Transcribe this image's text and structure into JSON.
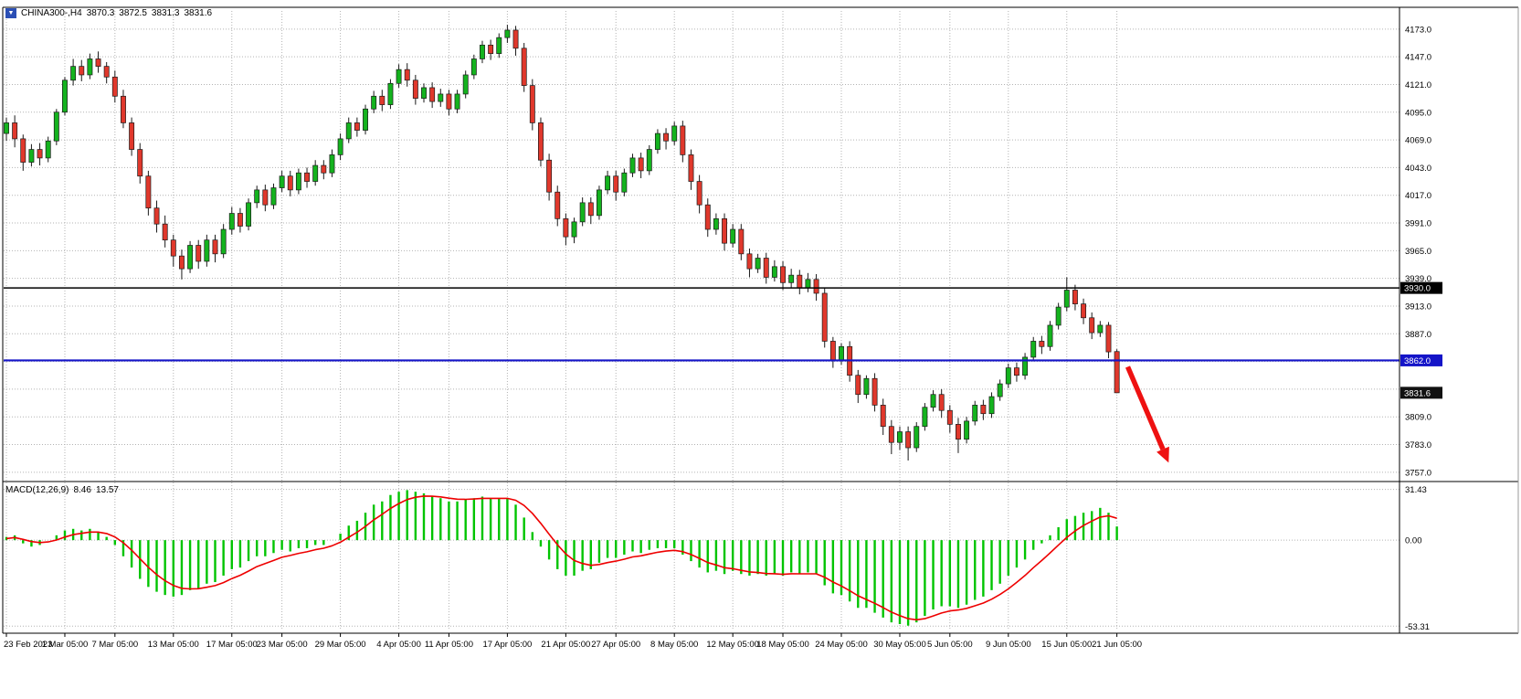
{
  "header": {
    "symbol": "CHINA300-,H4",
    "open": "3870.3",
    "high": "3872.5",
    "low": "3831.3",
    "close": "3831.6"
  },
  "chart_data": {
    "type": "candlestick",
    "symbol": "CHINA300-,H4",
    "timeframe": "H4",
    "indicator": "MACD",
    "price_axis": {
      "labeled_ticks": [
        4173,
        4147,
        4121,
        4095,
        4069,
        4043,
        4017,
        3991,
        3965,
        3939,
        3913,
        3887,
        3809,
        3783,
        3757
      ],
      "grid_min": 3757,
      "grid_max": 4173,
      "grid_step": 26,
      "min": 3750,
      "max": 4190
    },
    "hlines": [
      {
        "price": 3930.0,
        "label": "3930.0",
        "color": "#000000",
        "width": 1.4
      },
      {
        "price": 3862.0,
        "label": "3862.0",
        "color": "#1414c8",
        "width": 2.2
      }
    ],
    "current_price": {
      "price": 3831.6,
      "label": "3831.6",
      "color": "#111111"
    },
    "candles": [
      [
        4075,
        4090,
        4068,
        4085
      ],
      [
        4085,
        4092,
        4062,
        4070
      ],
      [
        4070,
        4074,
        4040,
        4048
      ],
      [
        4048,
        4065,
        4044,
        4060
      ],
      [
        4060,
        4066,
        4045,
        4052
      ],
      [
        4052,
        4072,
        4048,
        4068
      ],
      [
        4068,
        4098,
        4064,
        4095
      ],
      [
        4095,
        4128,
        4092,
        4125
      ],
      [
        4125,
        4145,
        4120,
        4138
      ],
      [
        4138,
        4144,
        4124,
        4130
      ],
      [
        4130,
        4150,
        4126,
        4145
      ],
      [
        4145,
        4152,
        4132,
        4138
      ],
      [
        4138,
        4142,
        4122,
        4128
      ],
      [
        4128,
        4134,
        4104,
        4110
      ],
      [
        4110,
        4116,
        4080,
        4085
      ],
      [
        4085,
        4090,
        4054,
        4060
      ],
      [
        4060,
        4066,
        4028,
        4035
      ],
      [
        4035,
        4040,
        3998,
        4005
      ],
      [
        4005,
        4012,
        3982,
        3990
      ],
      [
        3990,
        3998,
        3968,
        3975
      ],
      [
        3975,
        3980,
        3950,
        3960
      ],
      [
        3960,
        3966,
        3938,
        3948
      ],
      [
        3948,
        3974,
        3944,
        3970
      ],
      [
        3970,
        3975,
        3948,
        3955
      ],
      [
        3955,
        3980,
        3950,
        3975
      ],
      [
        3975,
        3980,
        3954,
        3962
      ],
      [
        3962,
        3990,
        3958,
        3985
      ],
      [
        3985,
        4006,
        3980,
        4000
      ],
      [
        4000,
        4005,
        3982,
        3988
      ],
      [
        3988,
        4014,
        3984,
        4010
      ],
      [
        4010,
        4026,
        4005,
        4022
      ],
      [
        4022,
        4027,
        4002,
        4008
      ],
      [
        4008,
        4028,
        4004,
        4024
      ],
      [
        4024,
        4040,
        4020,
        4035
      ],
      [
        4035,
        4040,
        4016,
        4022
      ],
      [
        4022,
        4042,
        4018,
        4038
      ],
      [
        4038,
        4043,
        4024,
        4030
      ],
      [
        4030,
        4050,
        4026,
        4045
      ],
      [
        4045,
        4050,
        4032,
        4038
      ],
      [
        4038,
        4060,
        4034,
        4055
      ],
      [
        4055,
        4075,
        4050,
        4070
      ],
      [
        4070,
        4090,
        4066,
        4085
      ],
      [
        4085,
        4090,
        4072,
        4078
      ],
      [
        4078,
        4102,
        4074,
        4098
      ],
      [
        4098,
        4115,
        4094,
        4110
      ],
      [
        4110,
        4116,
        4096,
        4102
      ],
      [
        4102,
        4126,
        4098,
        4122
      ],
      [
        4122,
        4140,
        4118,
        4135
      ],
      [
        4135,
        4141,
        4119,
        4125
      ],
      [
        4125,
        4130,
        4102,
        4108
      ],
      [
        4108,
        4122,
        4104,
        4118
      ],
      [
        4118,
        4123,
        4099,
        4105
      ],
      [
        4105,
        4117,
        4100,
        4112
      ],
      [
        4112,
        4116,
        4092,
        4098
      ],
      [
        4098,
        4116,
        4094,
        4112
      ],
      [
        4112,
        4134,
        4108,
        4130
      ],
      [
        4130,
        4149,
        4126,
        4145
      ],
      [
        4145,
        4162,
        4141,
        4158
      ],
      [
        4158,
        4163,
        4144,
        4150
      ],
      [
        4150,
        4169,
        4146,
        4165
      ],
      [
        4165,
        4177,
        4160,
        4172
      ],
      [
        4172,
        4176,
        4148,
        4155
      ],
      [
        4155,
        4160,
        4114,
        4120
      ],
      [
        4120,
        4126,
        4078,
        4085
      ],
      [
        4085,
        4090,
        4044,
        4050
      ],
      [
        4050,
        4056,
        4012,
        4020
      ],
      [
        4020,
        4026,
        3988,
        3995
      ],
      [
        3995,
        4000,
        3970,
        3978
      ],
      [
        3978,
        3996,
        3972,
        3992
      ],
      [
        3992,
        4015,
        3988,
        4010
      ],
      [
        4010,
        4015,
        3990,
        3998
      ],
      [
        3998,
        4026,
        3994,
        4022
      ],
      [
        4022,
        4040,
        4018,
        4035
      ],
      [
        4035,
        4040,
        4012,
        4020
      ],
      [
        4020,
        4042,
        4016,
        4038
      ],
      [
        4038,
        4056,
        4034,
        4052
      ],
      [
        4052,
        4057,
        4033,
        4040
      ],
      [
        4040,
        4064,
        4036,
        4060
      ],
      [
        4060,
        4079,
        4056,
        4075
      ],
      [
        4075,
        4080,
        4060,
        4068
      ],
      [
        4068,
        4086,
        4064,
        4082
      ],
      [
        4082,
        4087,
        4048,
        4055
      ],
      [
        4055,
        4060,
        4022,
        4030
      ],
      [
        4030,
        4036,
        4000,
        4008
      ],
      [
        4008,
        4014,
        3978,
        3985
      ],
      [
        3985,
        4000,
        3980,
        3995
      ],
      [
        3995,
        4000,
        3965,
        3972
      ],
      [
        3972,
        3990,
        3968,
        3985
      ],
      [
        3985,
        3990,
        3956,
        3962
      ],
      [
        3962,
        3967,
        3940,
        3948
      ],
      [
        3948,
        3962,
        3944,
        3958
      ],
      [
        3958,
        3963,
        3934,
        3940
      ],
      [
        3940,
        3956,
        3936,
        3950
      ],
      [
        3950,
        3955,
        3928,
        3935
      ],
      [
        3935,
        3948,
        3930,
        3942
      ],
      [
        3942,
        3947,
        3924,
        3930
      ],
      [
        3930,
        3944,
        3926,
        3938
      ],
      [
        3938,
        3943,
        3918,
        3925
      ],
      [
        3925,
        3930,
        3874,
        3880
      ],
      [
        3880,
        3884,
        3855,
        3862
      ],
      [
        3862,
        3878,
        3858,
        3875
      ],
      [
        3875,
        3880,
        3842,
        3848
      ],
      [
        3848,
        3853,
        3822,
        3830
      ],
      [
        3830,
        3848,
        3826,
        3845
      ],
      [
        3845,
        3850,
        3814,
        3820
      ],
      [
        3820,
        3826,
        3792,
        3800
      ],
      [
        3800,
        3806,
        3774,
        3785
      ],
      [
        3785,
        3800,
        3778,
        3795
      ],
      [
        3795,
        3800,
        3768,
        3780
      ],
      [
        3780,
        3804,
        3776,
        3800
      ],
      [
        3800,
        3822,
        3796,
        3818
      ],
      [
        3818,
        3834,
        3814,
        3830
      ],
      [
        3830,
        3835,
        3808,
        3815
      ],
      [
        3815,
        3820,
        3794,
        3802
      ],
      [
        3802,
        3808,
        3775,
        3788
      ],
      [
        3788,
        3809,
        3784,
        3805
      ],
      [
        3805,
        3824,
        3801,
        3820
      ],
      [
        3820,
        3825,
        3806,
        3812
      ],
      [
        3812,
        3832,
        3808,
        3828
      ],
      [
        3828,
        3844,
        3824,
        3840
      ],
      [
        3840,
        3859,
        3836,
        3855
      ],
      [
        3855,
        3860,
        3842,
        3848
      ],
      [
        3848,
        3869,
        3844,
        3865
      ],
      [
        3865,
        3884,
        3861,
        3880
      ],
      [
        3880,
        3885,
        3868,
        3875
      ],
      [
        3875,
        3899,
        3871,
        3895
      ],
      [
        3895,
        3916,
        3891,
        3912
      ],
      [
        3912,
        3940,
        3908,
        3928
      ],
      [
        3928,
        3933,
        3909,
        3915
      ],
      [
        3915,
        3920,
        3896,
        3902
      ],
      [
        3902,
        3907,
        3882,
        3888
      ],
      [
        3888,
        3899,
        3884,
        3895
      ],
      [
        3895,
        3898,
        3864,
        3870
      ],
      [
        3870.3,
        3872.5,
        3831.3,
        3831.6
      ]
    ],
    "time_labels": [
      {
        "i": 0,
        "t": "23 Feb 2023"
      },
      {
        "i": 7,
        "t": "1 Mar 05:00"
      },
      {
        "i": 13,
        "t": "7 Mar 05:00"
      },
      {
        "i": 20,
        "t": "13 Mar 05:00"
      },
      {
        "i": 27,
        "t": "17 Mar 05:00"
      },
      {
        "i": 33,
        "t": "23 Mar 05:00"
      },
      {
        "i": 40,
        "t": "29 Mar 05:00"
      },
      {
        "i": 47,
        "t": "4 Apr 05:00"
      },
      {
        "i": 53,
        "t": "11 Apr 05:00"
      },
      {
        "i": 60,
        "t": "17 Apr 05:00"
      },
      {
        "i": 67,
        "t": "21 Apr 05:00"
      },
      {
        "i": 73,
        "t": "27 Apr 05:00"
      },
      {
        "i": 80,
        "t": "8 May 05:00"
      },
      {
        "i": 87,
        "t": "12 May 05:00"
      },
      {
        "i": 93,
        "t": "18 May 05:00"
      },
      {
        "i": 100,
        "t": "24 May 05:00"
      },
      {
        "i": 107,
        "t": "30 May 05:00"
      },
      {
        "i": 113,
        "t": "5 Jun 05:00"
      },
      {
        "i": 120,
        "t": "9 Jun 05:00"
      },
      {
        "i": 127,
        "t": "15 Jun 05:00"
      },
      {
        "i": 133,
        "t": "21 Jun 05:00"
      }
    ],
    "macd": {
      "label": "MACD(12,26,9)",
      "value": "8.46",
      "signal_value": "13.57",
      "axis_labels": [
        "31.43",
        "0.00",
        "-53.31"
      ],
      "axis_values": [
        31.43,
        0,
        -53.31
      ],
      "min": -56,
      "max": 33.5,
      "histogram": [
        2,
        3,
        -2,
        -4,
        -3,
        0,
        3,
        6,
        7,
        6,
        7,
        5,
        2,
        -3,
        -10,
        -17,
        -24,
        -29,
        -32,
        -34,
        -35,
        -34,
        -31,
        -30,
        -27,
        -26,
        -22,
        -18,
        -17,
        -13,
        -10,
        -10,
        -8,
        -6,
        -7,
        -5,
        -5,
        -3,
        -3,
        0,
        4,
        9,
        12,
        17,
        22,
        24,
        28,
        30,
        31,
        30,
        29,
        27,
        26,
        24,
        24,
        25,
        26,
        27,
        26,
        26,
        26,
        22,
        14,
        5,
        -4,
        -12,
        -18,
        -22,
        -22,
        -19,
        -18,
        -14,
        -11,
        -11,
        -9,
        -7,
        -8,
        -6,
        -5,
        -5,
        -5,
        -9,
        -13,
        -17,
        -20,
        -19,
        -21,
        -19,
        -21,
        -22,
        -21,
        -22,
        -21,
        -22,
        -20,
        -21,
        -20,
        -21,
        -28,
        -33,
        -34,
        -38,
        -42,
        -42,
        -45,
        -48,
        -51,
        -52,
        -53,
        -51,
        -47,
        -43,
        -41,
        -41,
        -42,
        -40,
        -37,
        -35,
        -31,
        -27,
        -22,
        -17,
        -12,
        -6,
        -2,
        3,
        8,
        13,
        15,
        17,
        18,
        20,
        17,
        8.46
      ],
      "signal": [
        1.0,
        1.6,
        0.5,
        -0.9,
        -1.5,
        -1.1,
        0.1,
        1.9,
        3.4,
        4.2,
        5.0,
        5.0,
        4.1,
        2.0,
        -1.6,
        -6.2,
        -11.5,
        -16.8,
        -21.4,
        -25.2,
        -28.1,
        -29.9,
        -30.2,
        -30.1,
        -29.2,
        -28.2,
        -26.3,
        -23.8,
        -21.8,
        -19.2,
        -16.4,
        -14.5,
        -12.6,
        -10.6,
        -9.5,
        -8.2,
        -7.2,
        -5.9,
        -5.0,
        -3.5,
        -1.3,
        1.8,
        4.9,
        8.5,
        12.6,
        16.0,
        19.6,
        22.7,
        25.2,
        26.6,
        27.3,
        27.2,
        26.8,
        26.0,
        25.4,
        25.3,
        25.5,
        25.9,
        25.9,
        25.9,
        25.9,
        24.7,
        21.5,
        16.6,
        10.4,
        3.7,
        -2.8,
        -8.6,
        -12.6,
        -14.5,
        -15.6,
        -15.1,
        -13.9,
        -13.0,
        -11.8,
        -10.4,
        -9.7,
        -8.6,
        -7.5,
        -6.8,
        -6.3,
        -7.1,
        -8.9,
        -11.3,
        -13.9,
        -15.4,
        -17.1,
        -17.7,
        -18.7,
        -19.7,
        -20.1,
        -20.7,
        -20.8,
        -21.2,
        -20.8,
        -20.9,
        -20.9,
        -20.9,
        -23.0,
        -26.0,
        -28.4,
        -31.3,
        -34.5,
        -36.8,
        -39.2,
        -41.8,
        -44.6,
        -46.8,
        -48.7,
        -49.4,
        -48.7,
        -47.0,
        -45.2,
        -43.9,
        -43.3,
        -42.3,
        -40.7,
        -39.0,
        -36.6,
        -33.7,
        -30.2,
        -26.2,
        -21.9,
        -17.1,
        -12.6,
        -7.9,
        -3.1,
        1.7,
        5.7,
        9.1,
        11.8,
        14.3,
        15.1,
        13.57
      ]
    },
    "arrow": {
      "from": [
        134.3,
        3856
      ],
      "to": [
        139.2,
        3766
      ],
      "color": "#ee1111"
    },
    "colors": {
      "up": "#14b31e",
      "down": "#e0382c",
      "outline": "#1a1a1a",
      "grid": "#b3b3b3",
      "hist": "#00c400",
      "signal": "#ee0000",
      "bg": "#ffffff"
    }
  }
}
